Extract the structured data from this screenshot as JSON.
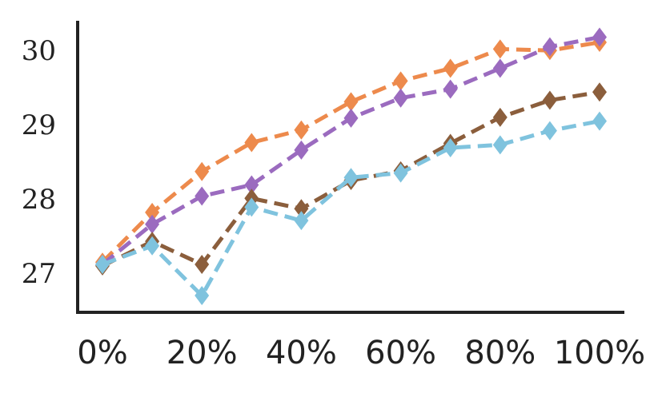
{
  "chart_data": {
    "type": "line",
    "title": "",
    "xlabel": "",
    "ylabel": "",
    "x": [
      0,
      10,
      20,
      30,
      40,
      50,
      60,
      70,
      80,
      90,
      100
    ],
    "xlim": [
      0,
      100
    ],
    "ylim": [
      26.55,
      30.25
    ],
    "x_ticks": [
      {
        "value": 0,
        "label": "0%"
      },
      {
        "value": 20,
        "label": "20%"
      },
      {
        "value": 40,
        "label": "40%"
      },
      {
        "value": 60,
        "label": "60%"
      },
      {
        "value": 80,
        "label": "80%"
      },
      {
        "value": 100,
        "label": "100%"
      }
    ],
    "y_ticks": [
      {
        "value": 27,
        "label": "27"
      },
      {
        "value": 28,
        "label": "28"
      },
      {
        "value": 29,
        "label": "29"
      },
      {
        "value": 30,
        "label": "30"
      }
    ],
    "grid": false,
    "line_style": "dashed",
    "marker": "diamond",
    "series": [
      {
        "color": "#ed8a4c",
        "values": [
          27.15,
          27.82,
          28.37,
          28.76,
          28.93,
          29.31,
          29.59,
          29.76,
          30.02,
          30.0,
          30.11
        ]
      },
      {
        "color": "#9b6bbf",
        "values": [
          27.12,
          27.66,
          28.04,
          28.19,
          28.66,
          29.09,
          29.36,
          29.48,
          29.76,
          30.05,
          30.18
        ]
      },
      {
        "color": "#8b5e3c",
        "values": [
          27.1,
          27.43,
          27.12,
          28.01,
          27.87,
          28.25,
          28.38,
          28.75,
          29.1,
          29.33,
          29.44
        ]
      },
      {
        "color": "#7fc3de",
        "values": [
          27.12,
          27.37,
          26.7,
          27.89,
          27.71,
          28.29,
          28.35,
          28.69,
          28.73,
          28.92,
          29.05
        ]
      }
    ]
  }
}
